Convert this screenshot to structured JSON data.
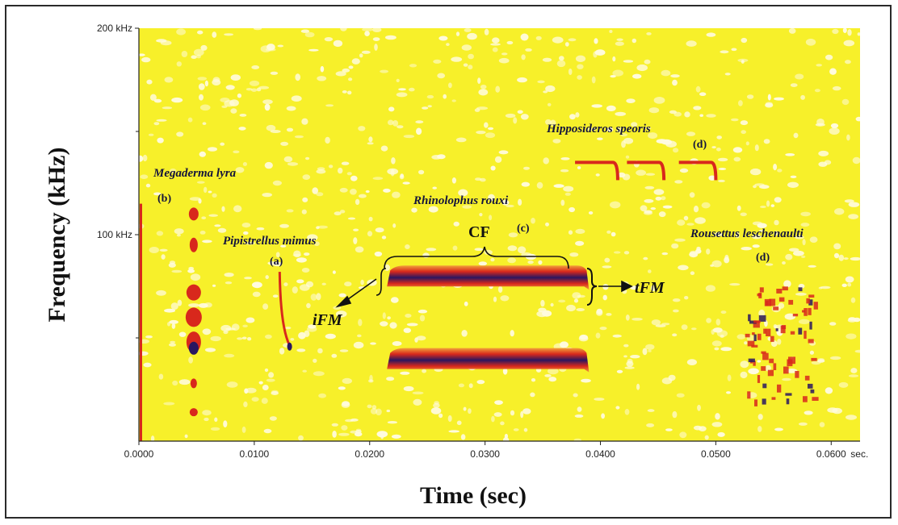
{
  "chart_data": {
    "type": "heatmap",
    "subtype": "spectrogram",
    "xlabel": "Time (sec)",
    "ylabel": "Frequency (kHz)",
    "xlim": [
      0,
      0.0625
    ],
    "ylim": [
      0,
      200
    ],
    "x_ticks": [
      {
        "value": 0.0,
        "label": "0.0000"
      },
      {
        "value": 0.01,
        "label": "0.0100"
      },
      {
        "value": 0.02,
        "label": "0.0200"
      },
      {
        "value": 0.03,
        "label": "0.0300"
      },
      {
        "value": 0.04,
        "label": "0.0400"
      },
      {
        "value": 0.05,
        "label": "0.0500"
      },
      {
        "value": 0.06,
        "label": "0.0600"
      }
    ],
    "x_unit_label": "sec.",
    "y_ticks": [
      {
        "value": 200,
        "label": "200 kHz"
      },
      {
        "value": 100,
        "label": "100 kHz"
      }
    ],
    "y_minor_ticks": [
      50,
      150
    ],
    "colors": {
      "background": "#f7f02a",
      "speckle": "#fffbe0",
      "low": "#e8952a",
      "mid": "#d8281c",
      "high": "#2a1660"
    },
    "annotations": [
      {
        "id": "megaderma",
        "text": "Megaderma lyra",
        "style": "italic"
      },
      {
        "id": "megaderma_tag",
        "text": "(b)"
      },
      {
        "id": "pipistrellus",
        "text": "Pipistrellus mimus",
        "style": "italic"
      },
      {
        "id": "pipistrellus_tag",
        "text": "(a)"
      },
      {
        "id": "rhinolophus",
        "text": "Rhinolophus rouxi",
        "style": "italic"
      },
      {
        "id": "rhinolophus_tag",
        "text": "(c)"
      },
      {
        "id": "hipposideros",
        "text": "Hipposideros speoris",
        "style": "italic"
      },
      {
        "id": "hipposideros_tag",
        "text": "(d)"
      },
      {
        "id": "rousettus",
        "text": "Rousettus leschenaulti",
        "style": "italic"
      },
      {
        "id": "rousettus_tag",
        "text": "(d)"
      },
      {
        "id": "cf",
        "text": "CF"
      },
      {
        "id": "ifm",
        "text": "iFM"
      },
      {
        "id": "tfm",
        "text": "tFM"
      }
    ],
    "calls": [
      {
        "species": "Megaderma lyra",
        "type": "multi-harmonic FM blobs",
        "t_start": 0.0035,
        "t_end": 0.006,
        "f_range": [
          5,
          115
        ]
      },
      {
        "species": "Pipistrellus mimus",
        "type": "steep FM sweep",
        "t_start": 0.0122,
        "t_end": 0.0132,
        "f_range": [
          45,
          82
        ]
      },
      {
        "species": "Rhinolophus rouxi",
        "type": "CF-FM",
        "harmonic": 2,
        "t_start": 0.0215,
        "t_end": 0.0388,
        "f_cf": 80
      },
      {
        "species": "Rhinolophus rouxi",
        "type": "CF-FM",
        "harmonic": 1,
        "t_start": 0.0215,
        "t_end": 0.0388,
        "f_cf": 40
      },
      {
        "species": "Hipposideros speoris",
        "type": "CF-FM",
        "pulses": [
          {
            "t_start": 0.0378,
            "t_end": 0.0415,
            "f_cf": 135
          },
          {
            "t_start": 0.0423,
            "t_end": 0.0455,
            "f_cf": 135
          },
          {
            "t_start": 0.0468,
            "t_end": 0.05,
            "f_cf": 135
          }
        ]
      },
      {
        "species": "Rousettus leschenaulti",
        "type": "broadband click",
        "t_start": 0.0525,
        "t_end": 0.0585,
        "f_range": [
          20,
          75
        ]
      }
    ]
  }
}
